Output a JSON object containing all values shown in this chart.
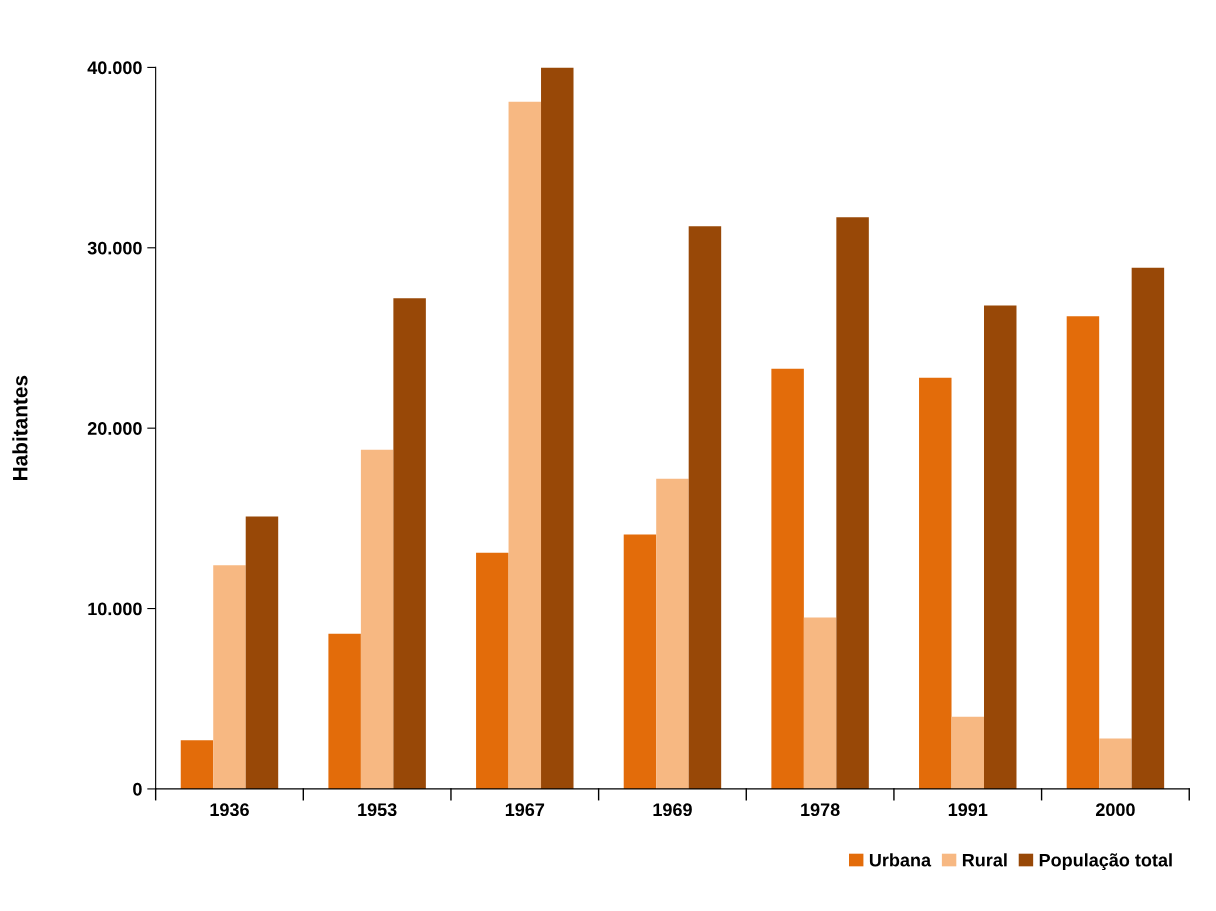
{
  "chart_data": {
    "type": "bar",
    "ylabel": "Habitantes",
    "categories": [
      "1936",
      "1953",
      "1967",
      "1969",
      "1978",
      "1991",
      "2000"
    ],
    "series": [
      {
        "name": "Urbana",
        "color": "#e36c0a",
        "values": [
          2700,
          8600,
          13100,
          14100,
          23300,
          22800,
          26200
        ]
      },
      {
        "name": "Rural",
        "color": "#f7b882",
        "values": [
          12400,
          18800,
          38100,
          17200,
          9500,
          4000,
          2800
        ]
      },
      {
        "name": "População total",
        "color": "#984807",
        "values": [
          15100,
          27200,
          40000,
          31200,
          31700,
          26800,
          28900
        ]
      }
    ],
    "ylim": [
      0,
      40000
    ],
    "yticks": [
      0,
      {
        "value": 10000,
        "label": "10.000"
      },
      {
        "value": 20000,
        "label": "20.000"
      },
      {
        "value": 30000,
        "label": "30.000"
      },
      {
        "value": 40000,
        "label": "40.000"
      }
    ],
    "grid": false,
    "legend": "bottom right"
  }
}
